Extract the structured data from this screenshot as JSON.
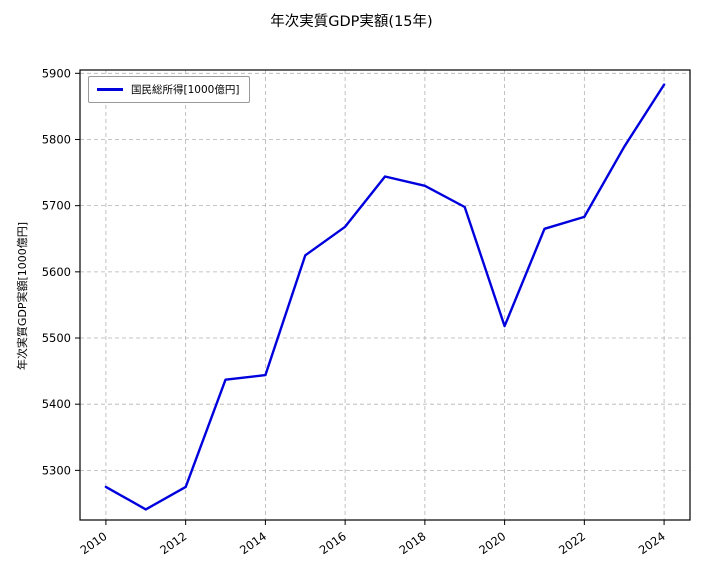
{
  "title": "年次実質GDP実額(15年)",
  "ylabel": "年次実質GDP実額[1000億円]",
  "legend": {
    "label": "国民総所得[1000億円]"
  },
  "chart_data": {
    "type": "line",
    "title": "年次実質GDP実額(15年)",
    "xlabel": "",
    "ylabel": "年次実質GDP実額[1000億円]",
    "x": [
      2010,
      2011,
      2012,
      2013,
      2014,
      2015,
      2016,
      2017,
      2018,
      2019,
      2020,
      2021,
      2022,
      2023,
      2024
    ],
    "series": [
      {
        "name": "国民総所得[1000億円]",
        "color": "#0000dd",
        "values": [
          5275,
          5241,
          5275,
          5437,
          5444,
          5625,
          5668,
          5744,
          5730,
          5698,
          5518,
          5665,
          5683,
          5789,
          5883
        ]
      }
    ],
    "xlim": [
      2009.35,
      2024.65
    ],
    "ylim": [
      5225,
      5905
    ],
    "xticks": [
      2010,
      2012,
      2014,
      2016,
      2018,
      2020,
      2022,
      2024
    ],
    "yticks": [
      5300,
      5400,
      5500,
      5600,
      5700,
      5800,
      5900
    ],
    "grid": true,
    "grid_style": "dashed",
    "grid_color": "#b3b3b3",
    "axes_color": "#000000",
    "legend_position": "upper-left",
    "x_tick_rotation_deg": 35
  }
}
